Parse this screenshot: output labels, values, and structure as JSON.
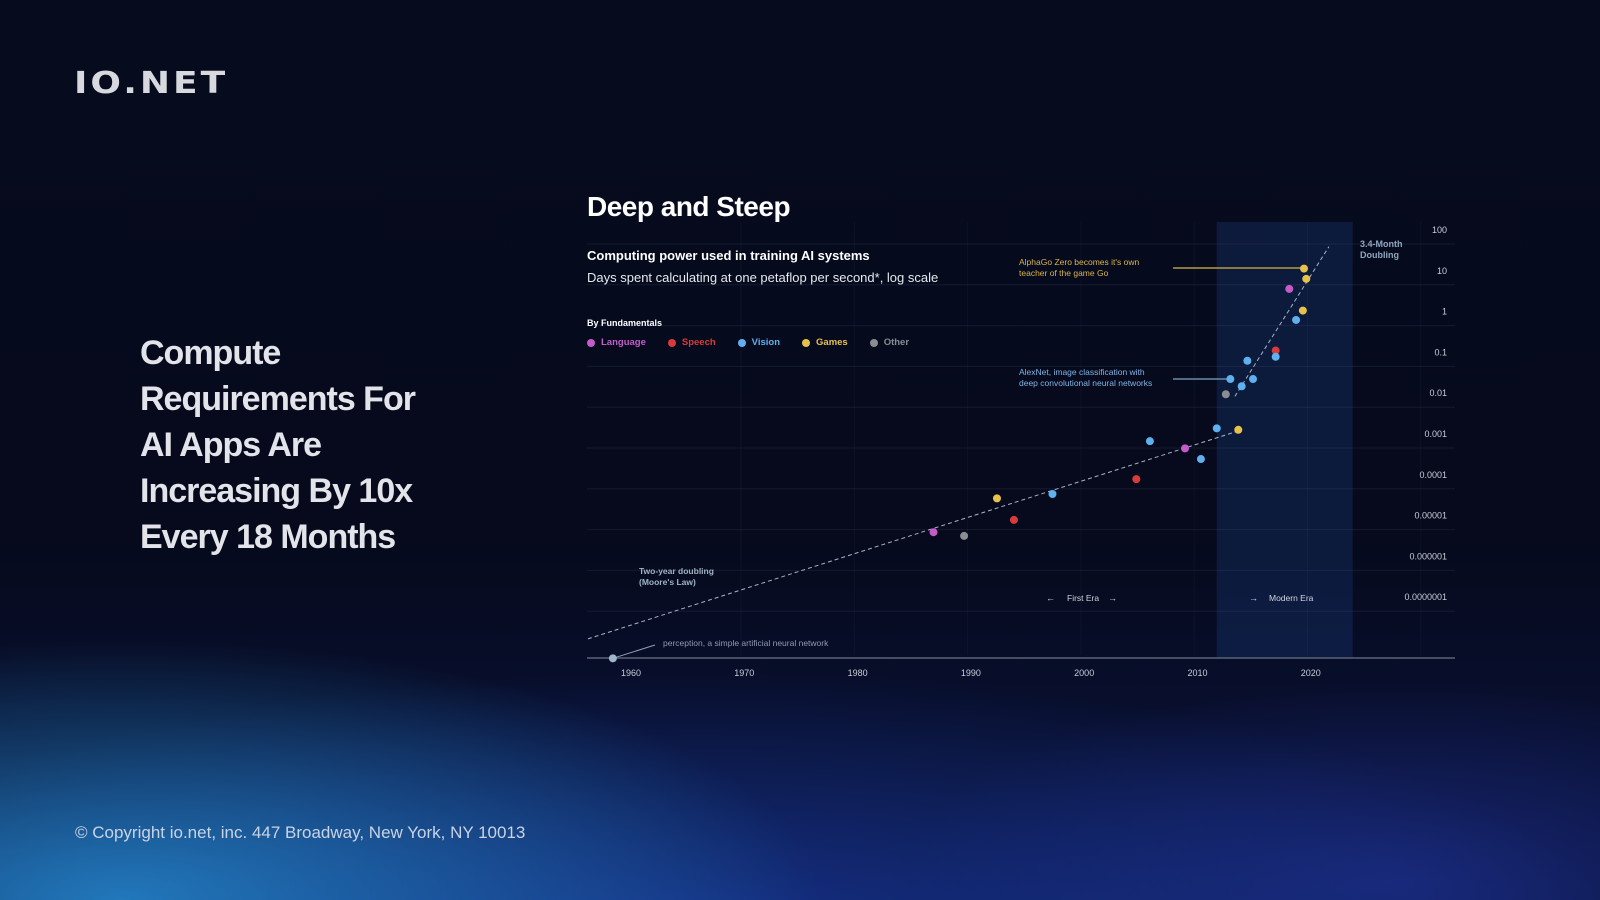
{
  "brand": {
    "logo_text": "io.net"
  },
  "headline": "Compute Requirements For AI Apps Are Increasing By 10x Every 18 Months",
  "footer": "© Copyright io.net, inc. 447 Broadway, New York, NY 10013",
  "chart_data": {
    "type": "scatter",
    "title": "Deep and Steep",
    "subtitle": "Computing power used in training AI systems",
    "description": "Days spent calculating at one petaflop per second*, log scale",
    "legend_title": "By Fundamentals",
    "legend_placement": "top-left",
    "y_scale": "log",
    "xlim": [
      1958,
      2030
    ],
    "ylim": [
      3e-09,
      100
    ],
    "x_ticks": [
      "1960",
      "1970",
      "1980",
      "1990",
      "2000",
      "2010",
      "2020"
    ],
    "y_ticks": [
      "100",
      "10",
      "1",
      "0.1",
      "0.01",
      "0.001",
      "0.0001",
      "0.00001",
      "0.000001",
      "0.0000001"
    ],
    "grid": true,
    "colors": {
      "Language": "#c35bc9",
      "Speech": "#d93b3b",
      "Vision": "#5fb0ef",
      "Games": "#e6c14b",
      "Other": "#8a8c92",
      "Perceptron": "#9fb4c8"
    },
    "series": [
      {
        "name": "Language",
        "points": [
          [
            1986.7,
            3.7e-06
          ],
          [
            2008.9,
            0.00042
          ],
          [
            2018.1,
            3.4
          ]
        ]
      },
      {
        "name": "Speech",
        "points": [
          [
            1993.8,
            7.4e-06
          ],
          [
            2004.6,
            7.4e-05
          ],
          [
            2016.9,
            0.105
          ]
        ]
      },
      {
        "name": "Vision",
        "points": [
          [
            1997.2,
            3.2e-05
          ],
          [
            2005.8,
            0.00063
          ],
          [
            2010.3,
            0.00023
          ],
          [
            2011.7,
            0.0013
          ],
          [
            2012.9,
            0.021
          ],
          [
            2013.9,
            0.014
          ],
          [
            2014.9,
            0.021
          ],
          [
            2014.4,
            0.059
          ],
          [
            2016.9,
            0.074
          ],
          [
            2018.7,
            0.59
          ]
        ]
      },
      {
        "name": "Games",
        "points": [
          [
            1992.3,
            2.5e-05
          ],
          [
            2013.6,
            0.0012
          ],
          [
            2019.3,
            1.0
          ],
          [
            2019.6,
            6.0
          ],
          [
            2019.4,
            10.7
          ]
        ]
      },
      {
        "name": "Other",
        "points": [
          [
            1989.4,
            3e-06
          ],
          [
            2012.5,
            0.0089
          ]
        ]
      }
    ],
    "perceptron_point": [
      1958.4,
      3e-09
    ],
    "trend_lines": [
      {
        "label": "Two-year doubling (Moore's Law)",
        "from": [
          1956.2,
          9e-09
        ],
        "to": [
          2013.5,
          0.0011
        ]
      },
      {
        "label": "3.4-Month Doubling",
        "from": [
          2013.3,
          0.0079
        ],
        "to": [
          2021.6,
          37
        ]
      }
    ],
    "modern_era_range": [
      2011.7,
      2023.7
    ],
    "annotations": {
      "alphago": "AlphaGo Zero becomes it's own teacher of the game Go",
      "alexnet": "AlexNet, image classification with deep convolutional neural networks",
      "perceptron": "perception, a simple artificial neural network",
      "moores_law_1": "Two-year doubling",
      "moores_law_2": "(Moore's Law)",
      "doubling_1": "3.4-Month",
      "doubling_2": "Doubling",
      "first_era": "First Era",
      "modern_era": "Modern Era"
    }
  }
}
